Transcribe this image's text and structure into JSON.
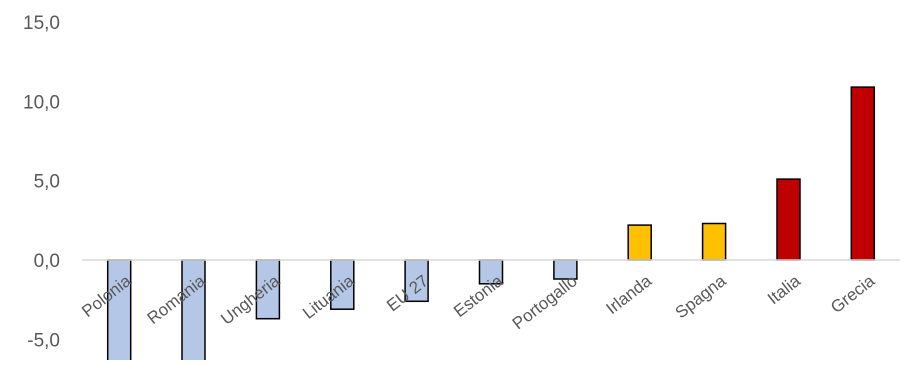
{
  "chart_data": {
    "type": "bar",
    "title": "",
    "xlabel": "",
    "ylabel": "",
    "ylim": [
      -5,
      15
    ],
    "y_ticks": [
      "15,0",
      "10,0",
      "5,0",
      "0,0",
      "-5,0"
    ],
    "y_tick_values": [
      15,
      10,
      5,
      0,
      -5
    ],
    "grid": false,
    "legend": "none",
    "categories": [
      "Polonia",
      "Romania",
      "Ungheria",
      "Lituania",
      "EU 27",
      "Estonia",
      "Portogallo",
      "Irlanda",
      "Spagna",
      "Italia",
      "Grecia"
    ],
    "values": [
      -6.5,
      -6.5,
      -3.7,
      -3.1,
      -2.6,
      -1.5,
      -1.2,
      2.2,
      2.3,
      5.1,
      10.9
    ],
    "bar_colors": [
      "#b4c7e7",
      "#b4c7e7",
      "#b4c7e7",
      "#b4c7e7",
      "#b4c7e7",
      "#b4c7e7",
      "#b4c7e7",
      "#ffc000",
      "#ffc000",
      "#c00000",
      "#c00000"
    ]
  }
}
